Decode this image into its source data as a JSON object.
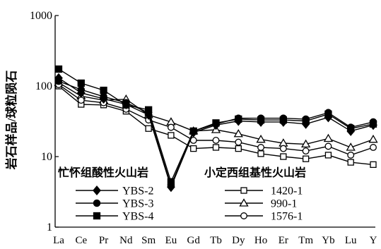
{
  "chart_data": {
    "type": "line",
    "ylabel": "岩石样品/球粒陨石",
    "xlabel": "",
    "yscale": "log",
    "ylim": [
      1,
      1000
    ],
    "yticks": [
      "1",
      "10",
      "100",
      "1000"
    ],
    "grid": false,
    "legend_placement": "lower-inside",
    "color": "#000000",
    "categories": [
      "La",
      "Ce",
      "Pr",
      "Nd",
      "Sm",
      "Eu",
      "Gd",
      "Tb",
      "Dy",
      "Ho",
      "Er",
      "Tm",
      "Yb",
      "Lu",
      "Y"
    ],
    "legend_groups": [
      {
        "title": "忙怀组酸性火山岩",
        "series": [
          "YBS-2",
          "YBS-3",
          "YBS-4"
        ]
      },
      {
        "title": "小定西组基性火山岩",
        "series": [
          "1420-1",
          "990-1",
          "1576-1"
        ]
      }
    ],
    "series": [
      {
        "name": "YBS-2",
        "marker": "diamond-filled",
        "values": [
          130,
          80,
          66,
          55,
          39,
          3.7,
          22,
          28,
          32,
          31,
          31,
          29,
          36,
          23,
          28
        ]
      },
      {
        "name": "YBS-3",
        "marker": "circle-filled",
        "values": [
          117,
          89,
          71,
          58,
          42,
          3.9,
          23,
          29,
          35,
          35,
          35,
          34,
          42,
          26,
          31
        ]
      },
      {
        "name": "YBS-4",
        "marker": "square-filled",
        "values": [
          174,
          110,
          87,
          54,
          46,
          4.4,
          23,
          30,
          34,
          33,
          33,
          32,
          40,
          25,
          29
        ]
      },
      {
        "name": "1420-1",
        "marker": "square-open",
        "values": [
          100,
          55,
          54,
          44,
          25,
          20,
          13,
          13.5,
          13,
          11,
          10,
          9.3,
          10.5,
          8.3,
          7.7
        ]
      },
      {
        "name": "990-1",
        "marker": "triangle-open",
        "values": [
          112,
          72,
          63,
          65,
          39,
          31,
          23,
          24,
          21,
          17.5,
          15.5,
          15,
          18,
          13.5,
          17.5
        ]
      },
      {
        "name": "1576-1",
        "marker": "circle-open",
        "values": [
          105,
          63,
          58,
          47,
          33,
          26,
          17,
          17,
          16,
          13.5,
          13,
          12,
          14,
          10.5,
          13.5
        ]
      }
    ]
  }
}
